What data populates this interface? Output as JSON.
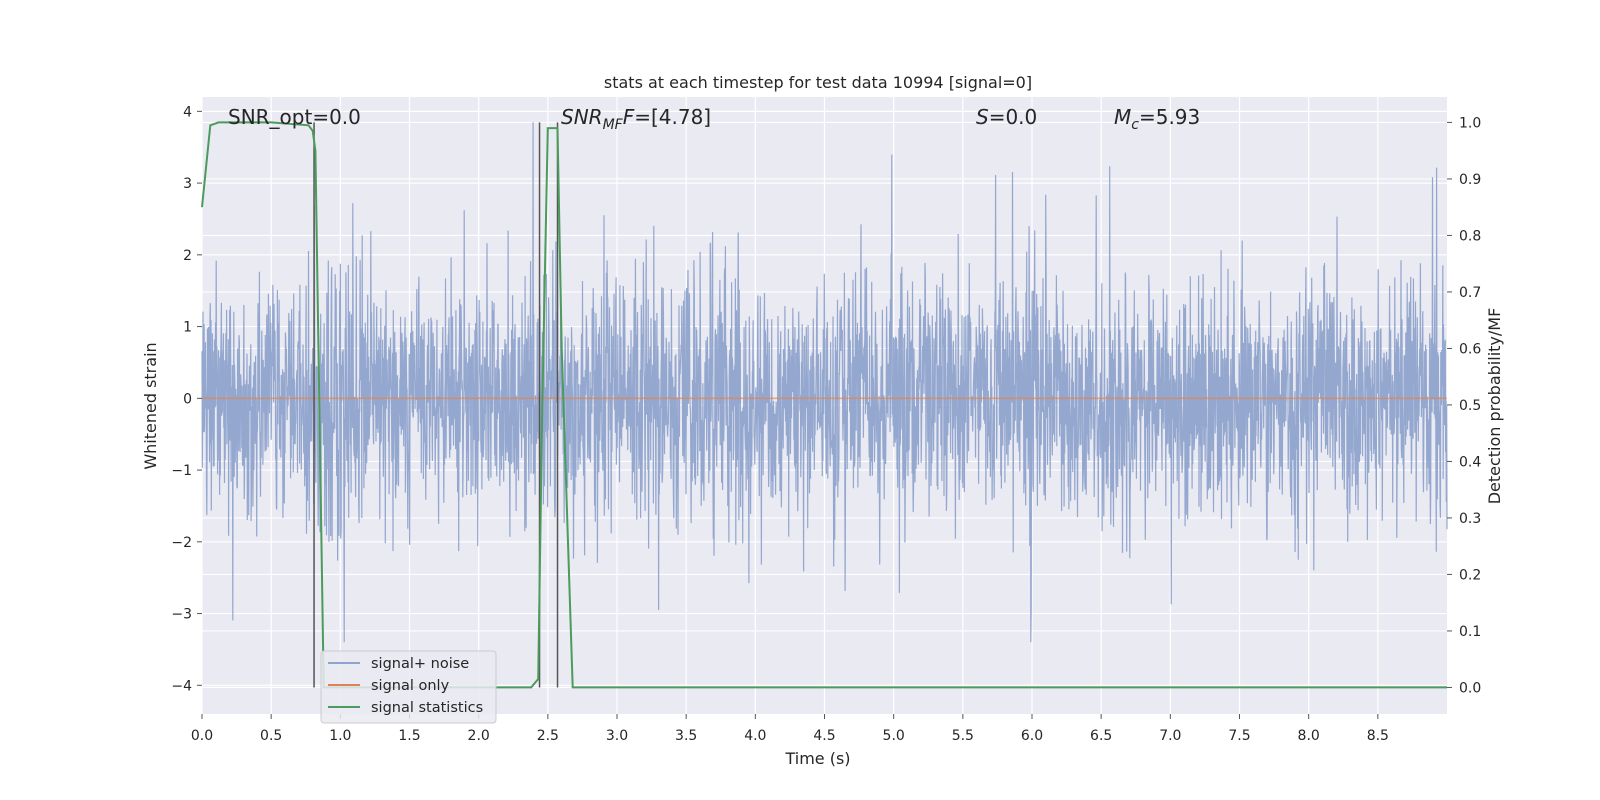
{
  "chart_data": {
    "type": "line",
    "title": "stats at each timestep for test data 10994 [signal=0]",
    "xlabel": "Time (s)",
    "ylabel_left": "Whitened strain",
    "ylabel_right": "Detection probability/MF",
    "xlim": [
      0,
      9.0
    ],
    "ylim_left": [
      -4.4,
      4.2
    ],
    "ylim_right": [
      -0.047,
      1.045
    ],
    "x_ticks": [
      "0.0",
      "0.5",
      "1.0",
      "1.5",
      "2.0",
      "2.5",
      "3.0",
      "3.5",
      "4.0",
      "4.5",
      "5.0",
      "5.5",
      "6.0",
      "6.5",
      "7.0",
      "7.5",
      "8.0",
      "8.5"
    ],
    "y_ticks_left": [
      "−4",
      "−3",
      "−2",
      "−1",
      "0",
      "1",
      "2",
      "3",
      "4"
    ],
    "y_ticks_right": [
      "0.0",
      "0.1",
      "0.2",
      "0.3",
      "0.4",
      "0.5",
      "0.6",
      "0.7",
      "0.8",
      "0.9",
      "1.0"
    ],
    "grid": true,
    "legend_position": "lower-left",
    "annotations": {
      "snr_opt": "SNR_opt=0.0",
      "snr_mf_prefix": "SNR",
      "snr_mf_sub": "MF",
      "snr_mf_value": "=[4.78]",
      "s_symbol": "S",
      "s_value": "=0.0",
      "mc_symbol": "M",
      "mc_sub": "c",
      "mc_value": "=5.93"
    },
    "series": [
      {
        "name": "signal+ noise",
        "color": "#8fa3cc",
        "description_kind": "noise-envelope",
        "typical_range": [
          -1.6,
          1.5
        ],
        "extreme_range": [
          -3.4,
          3.85
        ]
      },
      {
        "name": "signal only",
        "color": "#dd8452",
        "values_constant": 0
      },
      {
        "name": "signal statistics",
        "color": "#4c9a5c",
        "x": [
          0.0,
          0.06,
          0.12,
          0.5,
          0.77,
          0.8,
          0.82,
          0.88,
          2.38,
          2.43,
          2.46,
          2.5,
          2.53,
          2.57,
          2.6,
          2.68,
          9.0
        ],
        "values": [
          0.85,
          0.995,
          1.0,
          1.0,
          0.995,
          0.985,
          0.95,
          0.0,
          0.0,
          0.015,
          0.5,
          0.99,
          0.99,
          0.99,
          0.6,
          0.0,
          0.0
        ]
      }
    ],
    "vertical_lines": [
      0.81,
      2.44,
      2.57
    ]
  }
}
